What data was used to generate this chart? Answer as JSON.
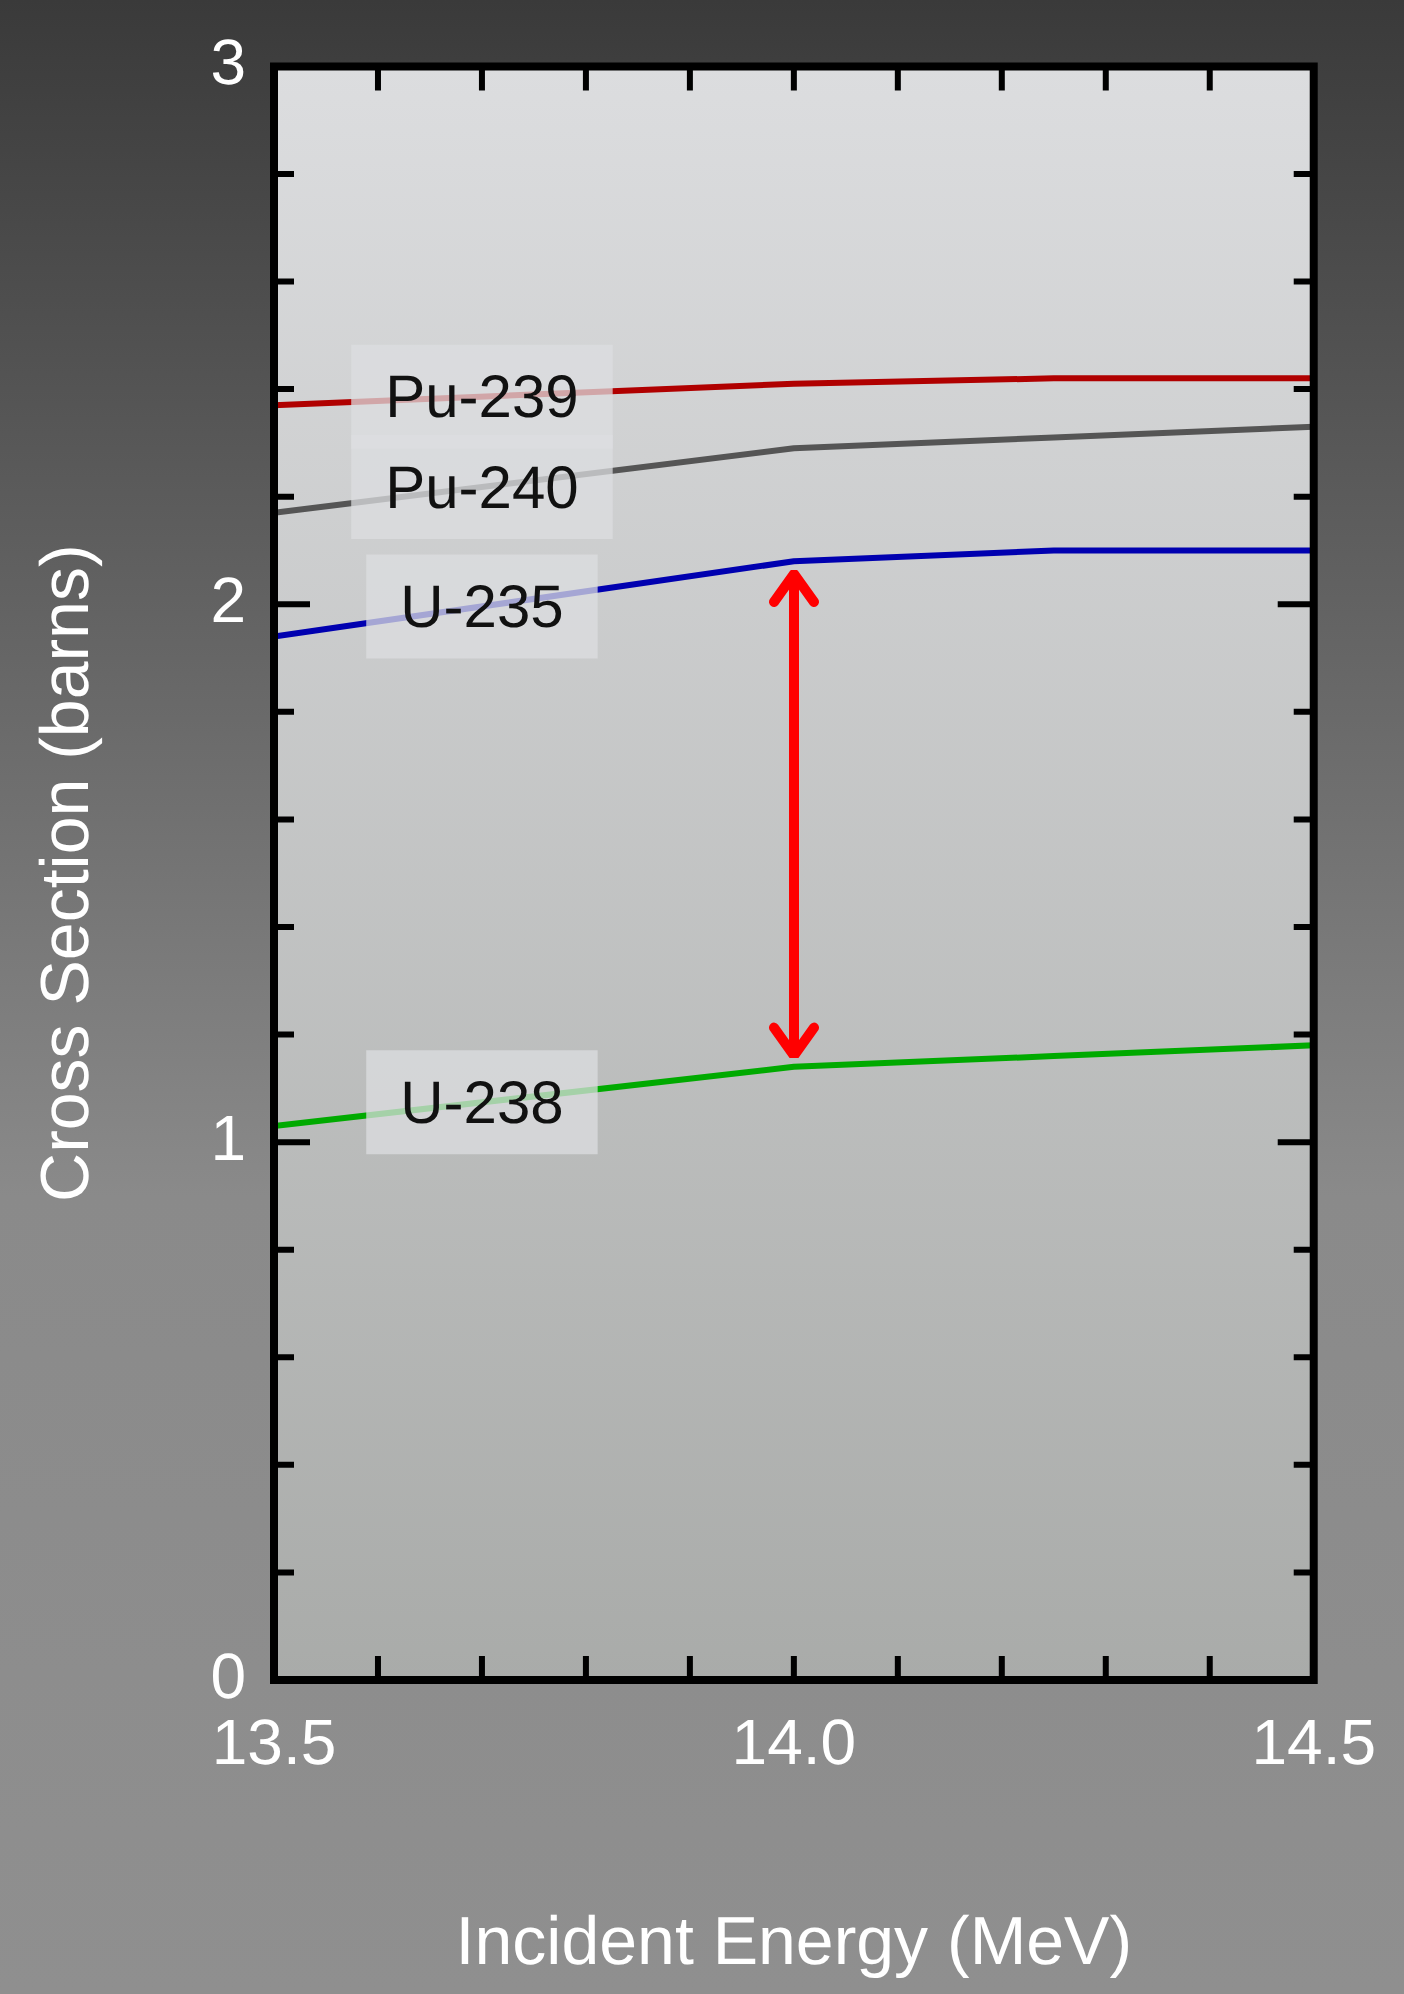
{
  "chart_data": {
    "type": "line",
    "xlabel": "Incident Energy (MeV)",
    "ylabel": "Cross Section (barns)",
    "x": [
      13.5,
      14.0,
      14.25,
      14.5
    ],
    "series": [
      {
        "name": "Pu-239",
        "color": "#b00000",
        "values": [
          2.37,
          2.41,
          2.42,
          2.42
        ]
      },
      {
        "name": "Pu-240",
        "color": "#555555",
        "values": [
          2.17,
          2.29,
          2.31,
          2.33
        ]
      },
      {
        "name": "U-235",
        "color": "#0000b0",
        "values": [
          1.94,
          2.08,
          2.1,
          2.1
        ]
      },
      {
        "name": "U-238",
        "color": "#00aa00",
        "values": [
          1.03,
          1.14,
          1.16,
          1.18
        ]
      }
    ],
    "xlim": [
      13.5,
      14.5
    ],
    "xticks": [
      {
        "value": 13.5,
        "label": "13.5"
      },
      {
        "value": 13.6,
        "label": null
      },
      {
        "value": 13.7,
        "label": null
      },
      {
        "value": 13.8,
        "label": null
      },
      {
        "value": 13.9,
        "label": null
      },
      {
        "value": 14.0,
        "label": "14.0"
      },
      {
        "value": 14.1,
        "label": null
      },
      {
        "value": 14.2,
        "label": null
      },
      {
        "value": 14.3,
        "label": null
      },
      {
        "value": 14.4,
        "label": null
      },
      {
        "value": 14.5,
        "label": "14.5"
      }
    ],
    "ylim": [
      0,
      3
    ],
    "yticks": [
      0,
      {
        "value": 0.2,
        "label": null
      },
      {
        "value": 0.4,
        "label": null
      },
      {
        "value": 0.6,
        "label": null
      },
      {
        "value": 0.8,
        "label": null
      },
      1,
      {
        "value": 1.2,
        "label": null
      },
      {
        "value": 1.4,
        "label": null
      },
      {
        "value": 1.6,
        "label": null
      },
      {
        "value": 1.8,
        "label": null
      },
      2,
      {
        "value": 2.2,
        "label": null
      },
      {
        "value": 2.4,
        "label": null
      },
      {
        "value": 2.6,
        "label": null
      },
      {
        "value": 2.8,
        "label": null
      },
      3
    ],
    "grid": false,
    "legend": false,
    "marker": "none",
    "line_style": "solid"
  }
}
